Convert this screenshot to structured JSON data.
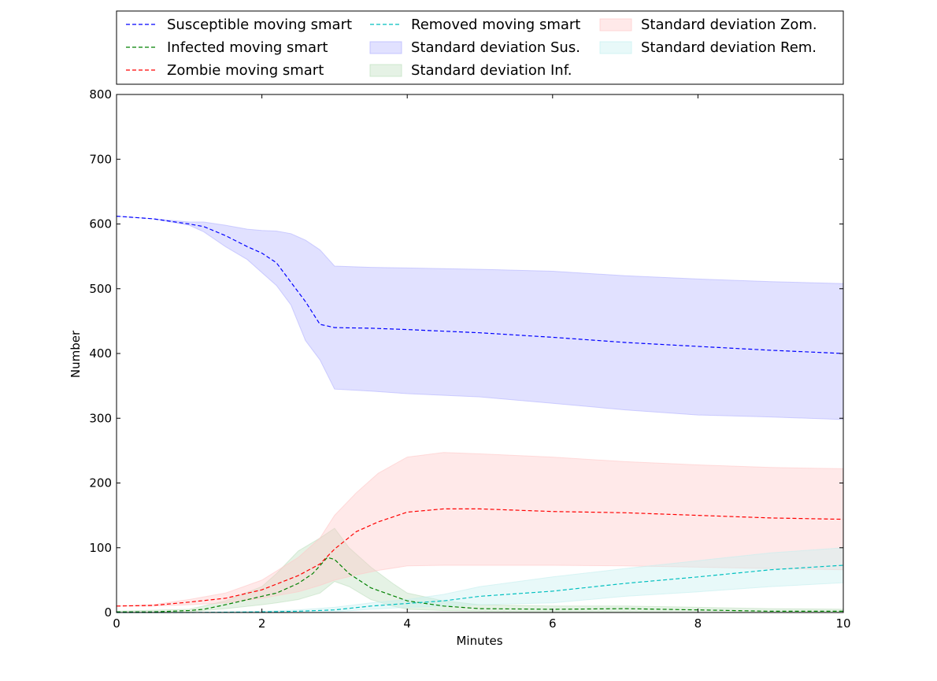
{
  "chart_data": {
    "type": "line",
    "title": "",
    "xlabel": "Minutes",
    "ylabel": "Number",
    "xlim": [
      0,
      10
    ],
    "ylim": [
      0,
      800
    ],
    "xticks": [
      0,
      2,
      4,
      6,
      8,
      10
    ],
    "yticks": [
      0,
      100,
      200,
      300,
      400,
      500,
      600,
      700,
      800
    ],
    "legend_position": "top (above plot)",
    "grid": false,
    "series": [
      {
        "name": "Susceptible moving smart",
        "color": "#0000ff",
        "style": "dashed",
        "x": [
          0,
          0.5,
          1.0,
          1.2,
          1.5,
          1.8,
          2.0,
          2.2,
          2.4,
          2.6,
          2.8,
          3.0,
          3.5,
          4.0,
          5.0,
          6.0,
          7.0,
          8.0,
          9.0,
          10.0
        ],
        "y": [
          612,
          608,
          600,
          596,
          582,
          565,
          555,
          540,
          510,
          480,
          445,
          440,
          439,
          437,
          432,
          425,
          417,
          411,
          405,
          400
        ]
      },
      {
        "name": "Infected moving smart",
        "color": "#008000",
        "style": "dashed",
        "x": [
          0,
          0.5,
          1.0,
          1.2,
          1.5,
          2.0,
          2.2,
          2.5,
          2.7,
          2.9,
          3.0,
          3.2,
          3.5,
          4.0,
          4.5,
          5.0,
          6.0,
          7.0,
          8.0,
          9.0,
          10.0
        ],
        "y": [
          1,
          1,
          3,
          5,
          12,
          25,
          30,
          45,
          60,
          85,
          82,
          60,
          38,
          18,
          10,
          6,
          5,
          6,
          4,
          2,
          2
        ]
      },
      {
        "name": "Zombie moving smart",
        "color": "#ff0000",
        "style": "dashed",
        "x": [
          0,
          0.5,
          1.0,
          1.5,
          2.0,
          2.5,
          2.8,
          3.0,
          3.3,
          3.6,
          4.0,
          4.5,
          5.0,
          6.0,
          7.0,
          8.0,
          9.0,
          10.0
        ],
        "y": [
          10,
          11,
          16,
          22,
          35,
          57,
          75,
          98,
          125,
          140,
          155,
          160,
          160,
          156,
          154,
          150,
          146,
          144
        ]
      },
      {
        "name": "Removed moving smart",
        "color": "#00bfbf",
        "style": "dashed",
        "x": [
          0,
          1.0,
          2.0,
          2.5,
          3.0,
          3.5,
          4.0,
          4.5,
          5.0,
          6.0,
          7.0,
          8.0,
          9.0,
          10.0
        ],
        "y": [
          0,
          0,
          1,
          2,
          4,
          10,
          14,
          18,
          25,
          33,
          45,
          55,
          66,
          73
        ]
      }
    ],
    "bands": [
      {
        "name": "Standard deviation Sus.",
        "fill": "#b3b3ff",
        "x": [
          0,
          0.5,
          1.0,
          1.2,
          1.5,
          1.8,
          2.0,
          2.2,
          2.4,
          2.6,
          2.8,
          3.0,
          3.5,
          4.0,
          5.0,
          6.0,
          7.0,
          8.0,
          9.0,
          10.0
        ],
        "upper": [
          612,
          608,
          603,
          603,
          598,
          592,
          590,
          589,
          585,
          575,
          560,
          535,
          533,
          532,
          530,
          527,
          520,
          515,
          511,
          508
        ],
        "lower": [
          612,
          608,
          598,
          588,
          565,
          545,
          525,
          505,
          475,
          420,
          390,
          345,
          342,
          338,
          333,
          323,
          313,
          305,
          302,
          298
        ]
      },
      {
        "name": "Standard deviation Inf.",
        "fill": "#bfdfbf",
        "x": [
          0,
          1.0,
          1.5,
          2.0,
          2.2,
          2.5,
          2.8,
          3.0,
          3.2,
          3.5,
          3.8,
          4.0,
          4.5,
          5.0,
          6.0,
          7.0,
          8.0,
          9.0,
          10.0
        ],
        "upper": [
          2,
          5,
          18,
          40,
          60,
          95,
          115,
          130,
          100,
          70,
          45,
          30,
          18,
          12,
          10,
          10,
          8,
          6,
          5
        ],
        "lower": [
          0,
          1,
          6,
          12,
          15,
          20,
          30,
          48,
          40,
          20,
          10,
          5,
          3,
          2,
          1,
          1,
          0,
          0,
          0
        ]
      },
      {
        "name": "Standard deviation Zom.",
        "fill": "#ffc8c8",
        "x": [
          0,
          0.5,
          1.0,
          1.5,
          2.0,
          2.5,
          2.8,
          3.0,
          3.3,
          3.6,
          4.0,
          4.5,
          5.0,
          6.0,
          7.0,
          8.0,
          9.0,
          10.0
        ],
        "upper": [
          10,
          12,
          20,
          30,
          50,
          85,
          115,
          150,
          185,
          215,
          240,
          247,
          245,
          240,
          233,
          228,
          224,
          222
        ],
        "lower": [
          10,
          10,
          12,
          15,
          22,
          32,
          42,
          50,
          58,
          65,
          72,
          73,
          73,
          73,
          72,
          70,
          68,
          66
        ]
      },
      {
        "name": "Standard deviation Rem.",
        "fill": "#c5efef",
        "x": [
          0,
          1.0,
          2.0,
          2.5,
          3.0,
          3.5,
          4.0,
          4.5,
          5.0,
          6.0,
          7.0,
          8.0,
          9.0,
          10.0
        ],
        "upper": [
          0,
          0,
          2,
          4,
          8,
          15,
          20,
          28,
          40,
          55,
          68,
          80,
          92,
          100
        ],
        "lower": [
          0,
          0,
          0,
          0,
          1,
          5,
          8,
          10,
          12,
          15,
          25,
          32,
          40,
          46
        ]
      }
    ]
  },
  "legend_items": [
    {
      "label": "Susceptible moving smart",
      "kind": "line",
      "color": "#0000ff"
    },
    {
      "label": "Infected moving smart",
      "kind": "line",
      "color": "#008000"
    },
    {
      "label": "Zombie moving smart",
      "kind": "line",
      "color": "#ff0000"
    },
    {
      "label": "Removed moving smart",
      "kind": "line",
      "color": "#00bfbf"
    },
    {
      "label": "Standard deviation Sus.",
      "kind": "patch",
      "color": "#b3b3ff"
    },
    {
      "label": "Standard deviation Inf.",
      "kind": "patch",
      "color": "#bfdfbf"
    },
    {
      "label": "Standard deviation Zom.",
      "kind": "patch",
      "color": "#ffc8c8"
    },
    {
      "label": "Standard deviation Rem.",
      "kind": "patch",
      "color": "#c5efef"
    }
  ]
}
